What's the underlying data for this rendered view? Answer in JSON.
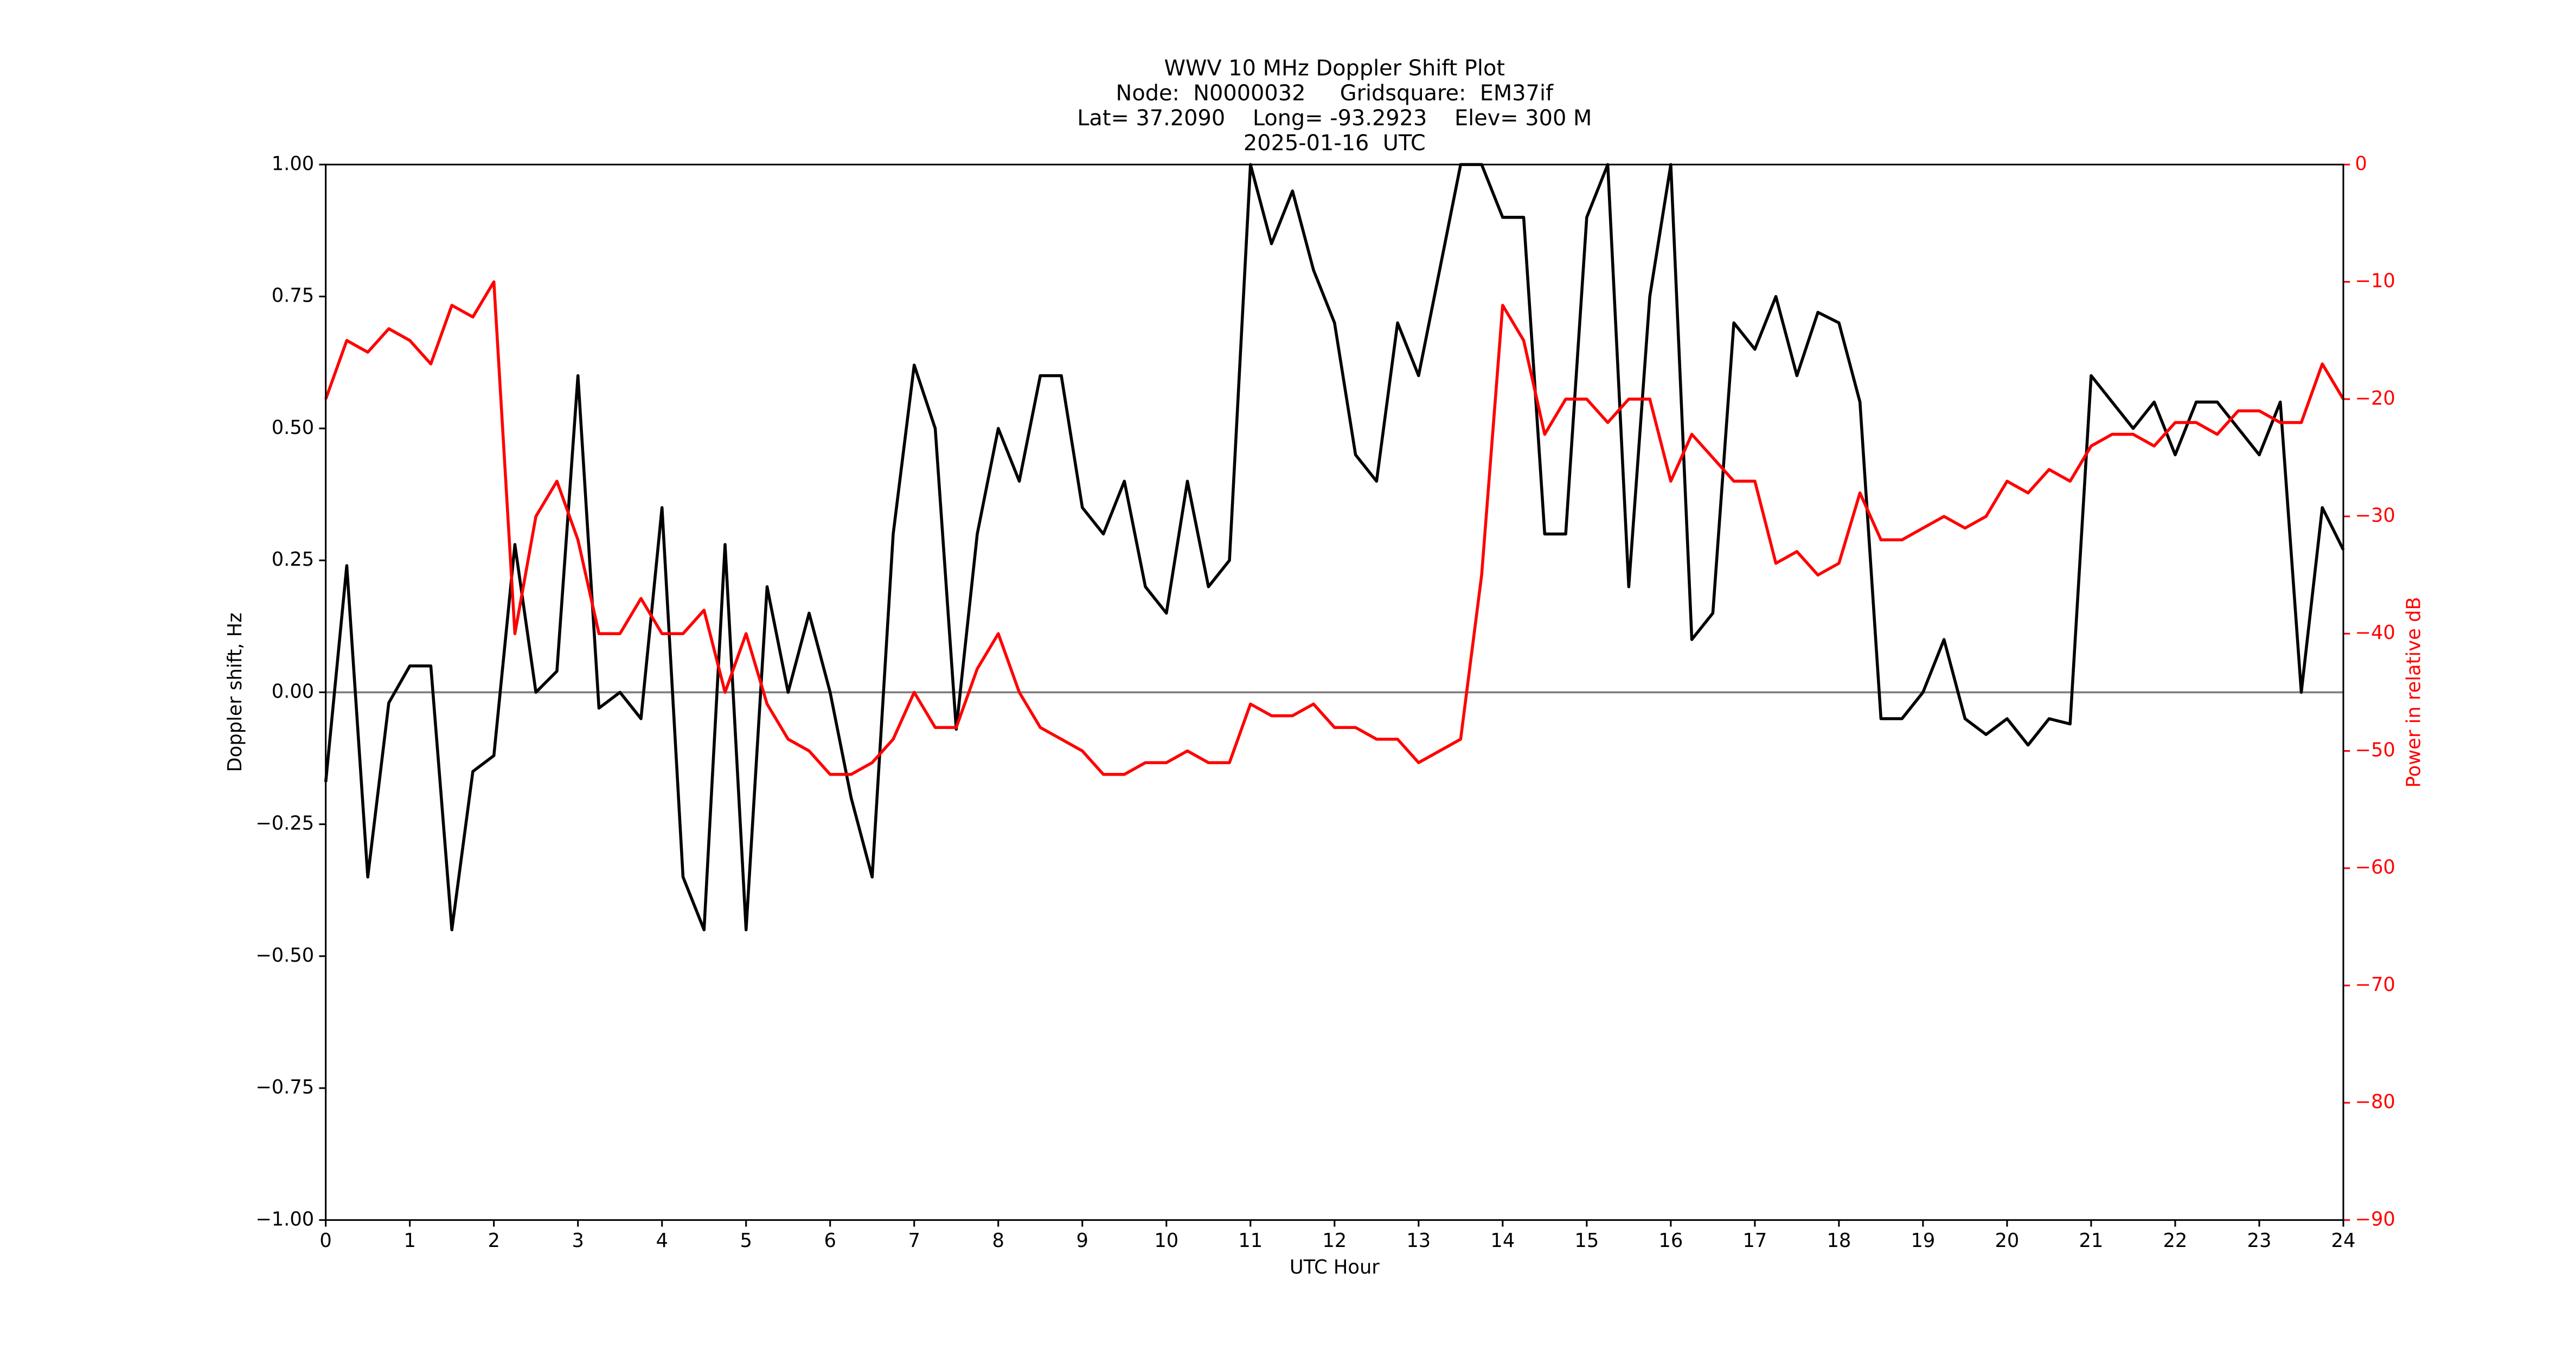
{
  "chart_data": {
    "type": "line",
    "title": [
      "WWV 10 MHz Doppler Shift Plot",
      "Node:  N0000032     Gridsquare:  EM37if",
      "Lat= 37.2090    Long= -93.2923    Elev= 300 M",
      "2025-01-16  UTC"
    ],
    "xlabel": "UTC Hour",
    "ylabel": "Doppler shift, Hz",
    "y2label": "Power in relative dB",
    "x": [
      0,
      0.25,
      0.5,
      0.75,
      1,
      1.25,
      1.5,
      1.75,
      2,
      2.25,
      2.5,
      2.75,
      3,
      3.25,
      3.5,
      3.75,
      4,
      4.25,
      4.5,
      4.75,
      5,
      5.25,
      5.5,
      5.75,
      6,
      6.25,
      6.5,
      6.75,
      7,
      7.25,
      7.5,
      7.75,
      8,
      8.25,
      8.5,
      8.75,
      9,
      9.25,
      9.5,
      9.75,
      10,
      10.25,
      10.5,
      10.75,
      11,
      11.25,
      11.5,
      11.75,
      12,
      12.25,
      12.5,
      12.75,
      13,
      13.25,
      13.5,
      13.75,
      14,
      14.25,
      14.5,
      14.75,
      15,
      15.25,
      15.5,
      15.75,
      16,
      16.25,
      16.5,
      16.75,
      17,
      17.25,
      17.5,
      17.75,
      18,
      18.25,
      18.5,
      18.75,
      19,
      19.25,
      19.5,
      19.75,
      20,
      20.25,
      20.5,
      20.75,
      21,
      21.25,
      21.5,
      21.75,
      22,
      22.25,
      22.5,
      22.75,
      23,
      23.25,
      23.5,
      23.75,
      24
    ],
    "series": [
      {
        "name": "Doppler shift",
        "color": "#000000",
        "axis": "y",
        "values": [
          -0.17,
          0.24,
          -0.35,
          -0.02,
          0.05,
          0.05,
          -0.45,
          -0.15,
          -0.12,
          0.28,
          0.0,
          0.04,
          0.6,
          -0.03,
          0.0,
          -0.05,
          0.35,
          -0.35,
          -0.45,
          0.28,
          -0.45,
          0.2,
          0.0,
          0.15,
          0.0,
          -0.2,
          -0.35,
          0.3,
          0.62,
          0.5,
          -0.07,
          0.3,
          0.5,
          0.4,
          0.6,
          0.6,
          0.35,
          0.3,
          0.4,
          0.2,
          0.15,
          0.4,
          0.2,
          0.25,
          1.0,
          0.85,
          0.95,
          0.8,
          0.7,
          0.45,
          0.4,
          0.7,
          0.6,
          0.8,
          1.0,
          1.0,
          0.9,
          0.9,
          0.3,
          0.3,
          0.9,
          1.0,
          0.2,
          0.75,
          1.0,
          0.1,
          0.15,
          0.7,
          0.65,
          0.75,
          0.6,
          0.72,
          0.7,
          0.55,
          -0.05,
          -0.05,
          0.0,
          0.1,
          -0.05,
          -0.08,
          -0.05,
          -0.1,
          -0.05,
          -0.06,
          0.6,
          0.55,
          0.5,
          0.55,
          0.45,
          0.55,
          0.55,
          0.5,
          0.45,
          0.55,
          0.0,
          0.35,
          0.27
        ]
      },
      {
        "name": "Power",
        "color": "#ff0000",
        "axis": "y2",
        "values": [
          -20,
          -15,
          -16,
          -14,
          -15,
          -17,
          -12,
          -13,
          -10,
          -40,
          -30,
          -27,
          -32,
          -40,
          -40,
          -37,
          -40,
          -40,
          -38,
          -45,
          -40,
          -46,
          -49,
          -50,
          -52,
          -52,
          -51,
          -49,
          -45,
          -48,
          -48,
          -43,
          -40,
          -45,
          -48,
          -49,
          -50,
          -52,
          -52,
          -51,
          -51,
          -50,
          -51,
          -51,
          -46,
          -47,
          -47,
          -46,
          -48,
          -48,
          -49,
          -49,
          -51,
          -50,
          -49,
          -35,
          -12,
          -15,
          -23,
          -20,
          -20,
          -22,
          -20,
          -20,
          -27,
          -23,
          -25,
          -27,
          -27,
          -34,
          -33,
          -35,
          -34,
          -28,
          -32,
          -32,
          -31,
          -30,
          -31,
          -30,
          -27,
          -28,
          -26,
          -27,
          -24,
          -23,
          -23,
          -24,
          -22,
          -22,
          -23,
          -21,
          -21,
          -22,
          -22,
          -17,
          -20
        ]
      }
    ],
    "hline": 0,
    "xlim": [
      0,
      24
    ],
    "xticks": [
      0,
      1,
      2,
      3,
      4,
      5,
      6,
      7,
      8,
      9,
      10,
      11,
      12,
      13,
      14,
      15,
      16,
      17,
      18,
      19,
      20,
      21,
      22,
      23,
      24
    ],
    "ylim": [
      -1,
      1
    ],
    "yticks": [
      {
        "value": -1,
        "label": "−1.00"
      },
      {
        "value": -0.75,
        "label": "−0.75"
      },
      {
        "value": -0.5,
        "label": "−0.50"
      },
      {
        "value": -0.25,
        "label": "−0.25"
      },
      {
        "value": 0,
        "label": "0.00"
      },
      {
        "value": 0.25,
        "label": "0.25"
      },
      {
        "value": 0.5,
        "label": "0.50"
      },
      {
        "value": 0.75,
        "label": "0.75"
      },
      {
        "value": 1,
        "label": "1.00"
      }
    ],
    "y2lim": [
      -90,
      0
    ],
    "y2ticks": [
      {
        "value": -90,
        "label": "−90"
      },
      {
        "value": -80,
        "label": "−80"
      },
      {
        "value": -70,
        "label": "−70"
      },
      {
        "value": -60,
        "label": "−60"
      },
      {
        "value": -50,
        "label": "−50"
      },
      {
        "value": -40,
        "label": "−40"
      },
      {
        "value": -30,
        "label": "−30"
      },
      {
        "value": -20,
        "label": "−20"
      },
      {
        "value": -10,
        "label": "−10"
      },
      0
    ],
    "y2color": "#ff0000",
    "hline_color": "#808080"
  }
}
